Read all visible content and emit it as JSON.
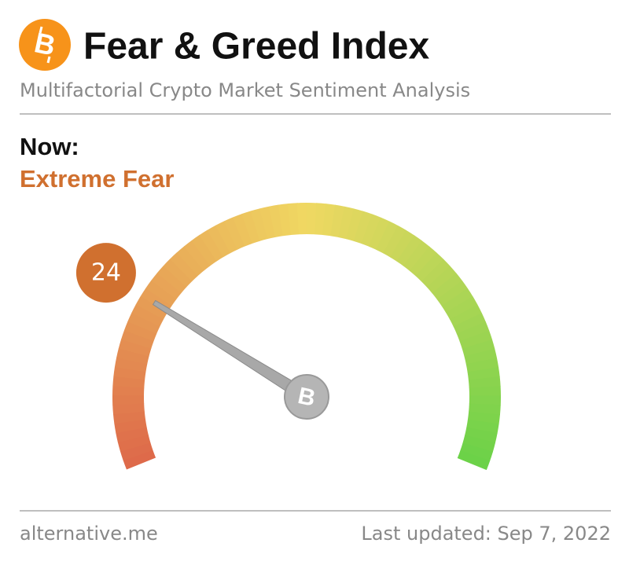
{
  "chart_data": {
    "type": "gauge",
    "title": "Fear & Greed Index",
    "subtitle": "Multifactorial Crypto Market Sentiment Analysis",
    "value_heading": "Now:",
    "value_class": "Extreme Fear",
    "values": [
      24
    ],
    "ylim": [
      0,
      100
    ],
    "color": "#d0702f",
    "source": "alternative.me",
    "updated": "Last updated: Sep 7, 2022"
  }
}
